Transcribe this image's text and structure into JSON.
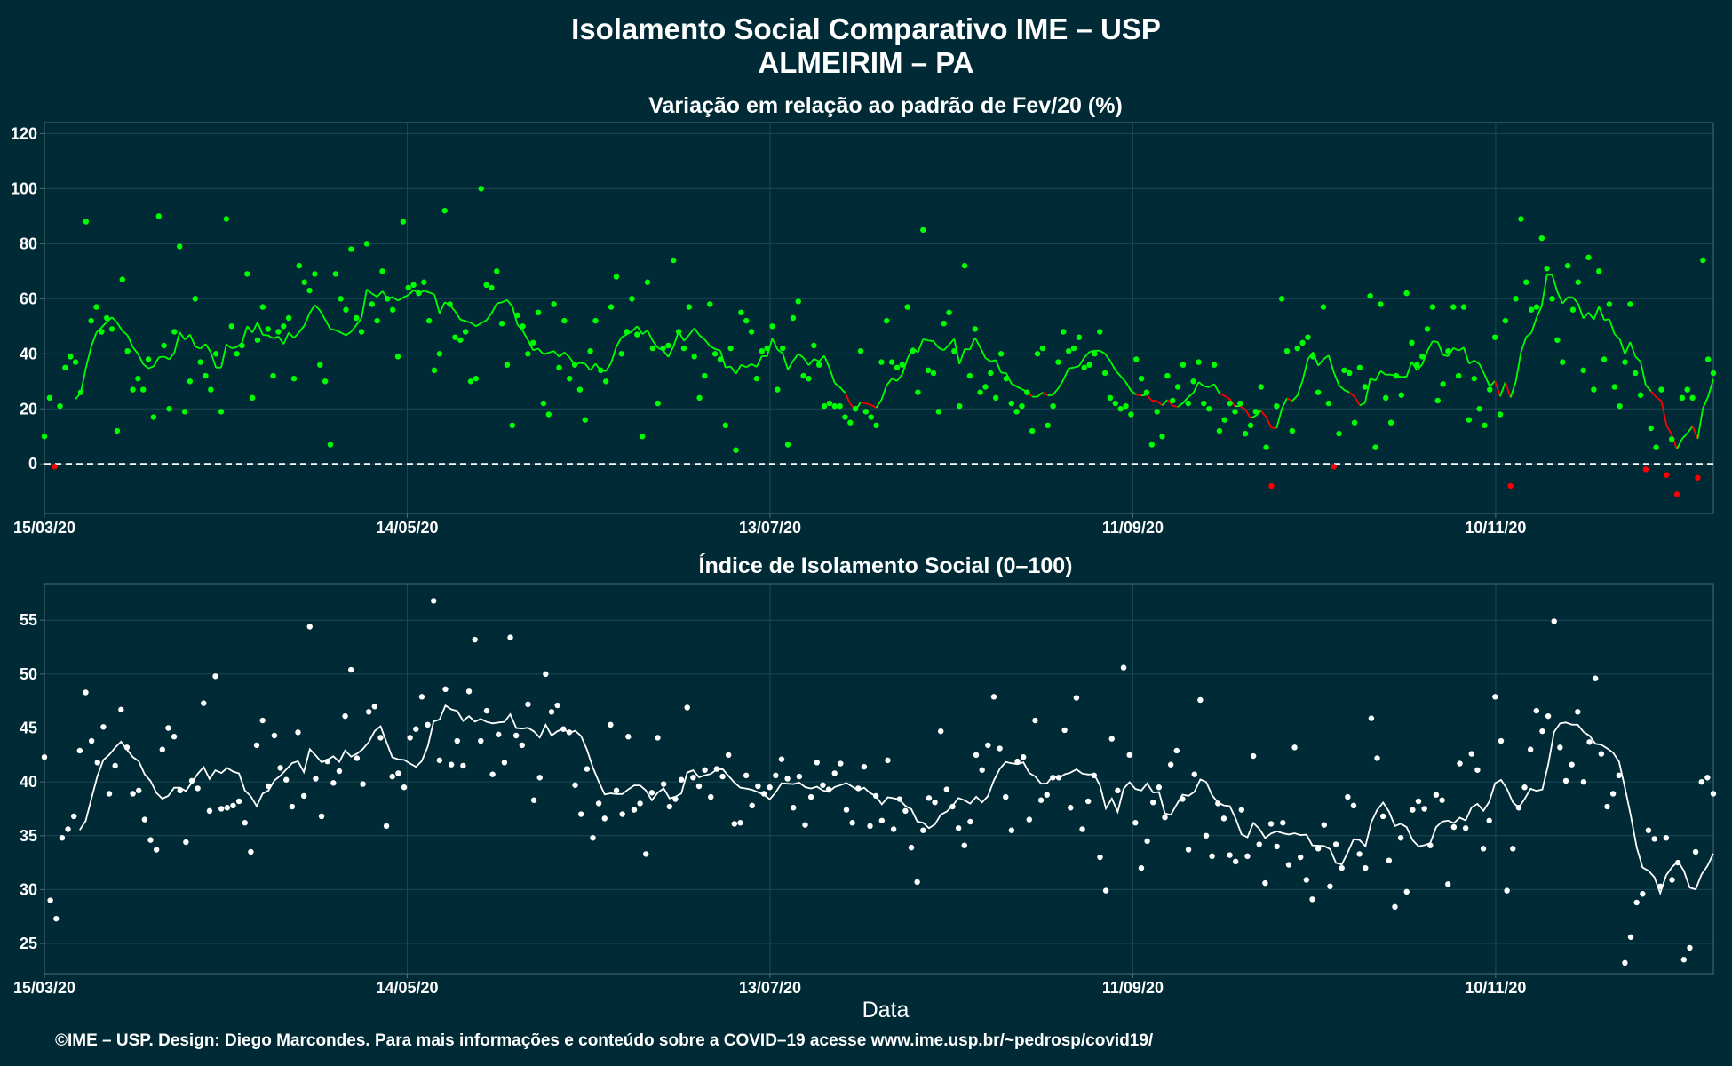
{
  "title": "Isolamento Social Comparativo IME – USP",
  "subtitle": "ALMEIRIM – PA",
  "xlabel": "Data",
  "footer": "©IME – USP. Design: Diego Marcondes. Para mais informações e conteúdo sobre a COVID–19 acesse www.ime.usp.br/~pedrosp/covid19/",
  "colors": {
    "background": "#002b36",
    "positive": "#00ff00",
    "negative": "#ff0000",
    "index": "#ffffff",
    "grid": "#1d4752"
  },
  "chart_data": [
    {
      "type": "scatter",
      "title": "Variação em relação ao padrão de Fev/20 (%)",
      "x_start": "15/03/20",
      "x_ticks": [
        "15/03/20",
        "14/05/20",
        "13/07/20",
        "11/09/20",
        "10/11/20"
      ],
      "x_tick_days": [
        0,
        60,
        120,
        180,
        240
      ],
      "xlim_days": [
        0,
        276
      ],
      "yticks": [
        0,
        20,
        40,
        60,
        80,
        100,
        120
      ],
      "ylim": [
        -18,
        124
      ],
      "reference_line": 0,
      "points": [
        10,
        24,
        -1,
        21,
        35,
        39,
        37,
        26,
        88,
        52,
        57,
        48,
        53,
        49,
        12,
        67,
        41,
        27,
        31,
        27,
        38,
        17,
        90,
        43,
        20,
        48,
        79,
        19,
        30,
        60,
        37,
        32,
        27,
        40,
        19,
        89,
        50,
        40,
        43,
        69,
        24,
        45,
        57,
        49,
        32,
        48,
        50,
        53,
        31,
        72,
        66,
        63,
        69,
        36,
        30,
        7,
        69,
        60,
        56,
        78,
        53,
        48,
        80,
        58,
        52,
        70,
        60,
        56,
        39,
        88,
        64,
        65,
        62,
        66,
        52,
        34,
        40,
        92,
        58,
        46,
        45,
        48,
        30,
        31,
        100,
        65,
        64,
        70,
        51,
        36,
        14,
        54,
        50,
        40,
        44,
        55,
        22,
        18,
        58,
        35,
        52,
        31,
        36,
        27,
        16,
        41,
        52,
        34,
        30,
        57,
        68,
        40,
        48,
        60,
        47,
        10,
        66,
        42,
        22,
        42,
        43,
        74,
        48,
        42,
        57,
        39,
        24,
        32,
        58,
        40,
        38,
        14,
        42,
        5,
        55,
        52,
        48,
        31,
        41,
        42,
        50,
        27,
        42,
        7,
        53,
        59,
        32,
        31,
        43,
        36,
        21,
        22,
        21,
        21,
        17,
        15,
        20,
        41,
        19,
        17,
        14,
        37,
        52,
        37,
        35,
        36,
        57,
        41,
        26,
        85,
        34,
        33,
        19,
        51,
        55,
        41,
        21,
        72,
        32,
        49,
        26,
        28,
        33,
        24,
        40,
        31,
        22,
        19,
        21,
        26,
        12,
        40,
        42,
        14,
        21,
        37,
        48,
        41,
        42,
        46,
        35,
        36,
        40,
        48,
        33,
        24,
        22,
        20,
        21,
        18,
        38,
        31,
        26,
        7,
        19,
        10,
        32,
        23,
        28,
        36,
        22,
        30,
        37,
        22,
        20,
        36,
        12,
        16,
        22,
        19,
        22,
        11,
        14,
        19,
        28,
        6,
        -8,
        21,
        60,
        41,
        12,
        42,
        44,
        46,
        39,
        26,
        57,
        22,
        -1,
        11,
        34,
        33,
        15,
        35,
        28,
        61,
        6,
        58,
        24,
        15,
        32,
        25,
        62,
        44,
        36,
        39,
        49,
        57,
        23,
        29,
        41,
        57,
        32,
        57,
        16,
        31,
        20,
        14,
        27,
        46,
        18,
        52,
        -8,
        60,
        89,
        66,
        56,
        57,
        82,
        71,
        60,
        45,
        37,
        72,
        56,
        66,
        34,
        75,
        27,
        70,
        38,
        58,
        28,
        21,
        37,
        58,
        33,
        25,
        -2,
        13,
        6,
        27,
        -4,
        9,
        -11,
        24,
        27,
        24,
        -5,
        74,
        38,
        33
      ]
    },
    {
      "type": "scatter",
      "title": "Índice de Isolamento Social (0–100)",
      "x_start": "15/03/20",
      "x_ticks": [
        "15/03/20",
        "14/05/20",
        "13/07/20",
        "11/09/20",
        "10/11/20"
      ],
      "x_tick_days": [
        0,
        60,
        120,
        180,
        240
      ],
      "xlim_days": [
        0,
        276
      ],
      "yticks": [
        25,
        30,
        35,
        40,
        45,
        50,
        55
      ],
      "ylim": [
        22.2,
        58.4
      ],
      "points": [
        42.3,
        29.0,
        27.3,
        34.8,
        35.6,
        36.8,
        42.9,
        48.3,
        43.8,
        41.8,
        45.1,
        38.9,
        41.5,
        46.7,
        43.2,
        38.9,
        39.2,
        36.5,
        34.6,
        33.7,
        43.0,
        45.0,
        44.2,
        39.2,
        34.4,
        40.1,
        39.4,
        47.3,
        37.3,
        49.8,
        37.5,
        37.6,
        37.8,
        38.2,
        36.2,
        33.5,
        43.4,
        45.7,
        39.6,
        44.3,
        41.3,
        40.2,
        37.7,
        44.6,
        38.7,
        54.4,
        40.3,
        36.8,
        41.9,
        39.9,
        41.0,
        46.1,
        50.4,
        42.2,
        39.8,
        46.5,
        47.0,
        44.1,
        35.9,
        40.5,
        40.8,
        39.5,
        44.1,
        44.9,
        47.9,
        45.3,
        56.8,
        42.0,
        48.6,
        41.6,
        43.8,
        41.5,
        48.4,
        53.2,
        43.8,
        46.6,
        40.7,
        44.4,
        41.8,
        53.4,
        44.3,
        43.4,
        47.2,
        38.3,
        40.4,
        50.0,
        46.5,
        47.1,
        44.9,
        44.6,
        39.7,
        37.0,
        41.2,
        34.8,
        38.0,
        36.6,
        45.3,
        39.2,
        37.0,
        44.2,
        37.4,
        38.0,
        33.3,
        39.0,
        44.1,
        39.8,
        37.7,
        38.4,
        40.2,
        46.9,
        40.4,
        39.6,
        41.1,
        38.6,
        41.2,
        40.5,
        42.5,
        36.1,
        36.2,
        40.6,
        37.8,
        39.6,
        38.9,
        39.5,
        40.6,
        42.1,
        40.3,
        37.6,
        40.5,
        36.0,
        38.6,
        41.8,
        39.7,
        39.3,
        40.8,
        41.7,
        37.4,
        36.2,
        39.4,
        41.4,
        35.9,
        38.7,
        36.4,
        42.0,
        35.6,
        38.4,
        37.3,
        33.9,
        30.7,
        35.5,
        38.5,
        38.1,
        44.7,
        39.3,
        37.7,
        35.7,
        34.1,
        36.3,
        42.5,
        41.1,
        43.4,
        47.9,
        43.1,
        38.6,
        35.5,
        41.9,
        42.3,
        36.5,
        45.7,
        38.3,
        38.8,
        40.4,
        40.4,
        44.8,
        37.6,
        47.8,
        35.6,
        38.2,
        40.6,
        33.0,
        29.9,
        44.0,
        39.2,
        50.6,
        42.5,
        36.2,
        32.0,
        34.5,
        38.1,
        39.5,
        36.7,
        41.6,
        42.9,
        38.4,
        33.7,
        40.7,
        47.6,
        35.0,
        33.1,
        38.0,
        36.6,
        33.2,
        32.6,
        37.4,
        33.1,
        42.4,
        34.2,
        30.6,
        36.1,
        34.0,
        36.2,
        32.3,
        43.2,
        33.0,
        30.9,
        29.1,
        33.8,
        36.0,
        30.3,
        34.2,
        32.0,
        38.6,
        37.8,
        33.3,
        32.0,
        45.9,
        42.2,
        36.8,
        32.7,
        28.4,
        34.8,
        29.8,
        37.4,
        38.2,
        37.5,
        34.1,
        38.8,
        38.3,
        30.5,
        35.8,
        41.7,
        35.7,
        42.6,
        41.1,
        33.8,
        36.4,
        47.9,
        43.8,
        29.9,
        33.8,
        37.6,
        39.5,
        43.0,
        46.6,
        44.7,
        46.1,
        54.9,
        43.2,
        40.1,
        41.6,
        46.5,
        40.0,
        43.7,
        49.6,
        42.6,
        37.7,
        38.9,
        40.6,
        23.2,
        25.6,
        28.8,
        29.6,
        35.5,
        34.7,
        30.3,
        34.8,
        30.9,
        32.5,
        23.5,
        24.6,
        33.5,
        40.0,
        40.4,
        38.9
      ]
    }
  ]
}
